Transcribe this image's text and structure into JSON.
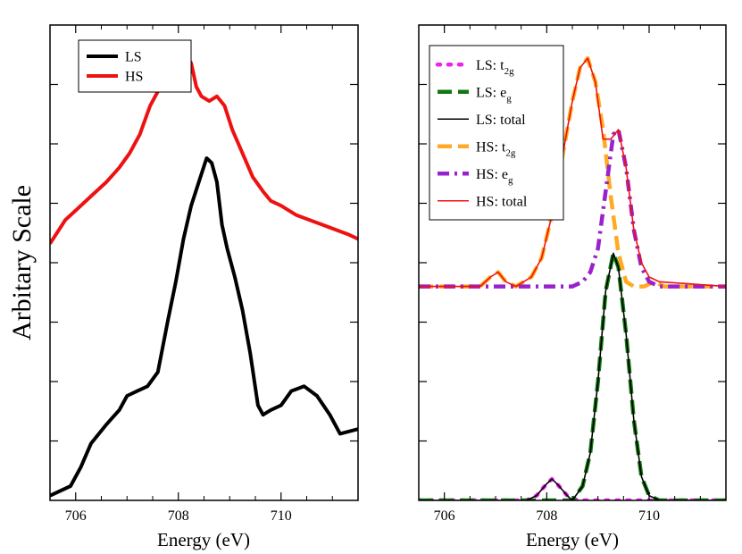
{
  "chart_data": [
    {
      "type": "line",
      "title": "",
      "xlabel": "Energy (eV)",
      "ylabel": "Arbitary Scale",
      "xlim": [
        705.5,
        711.5
      ],
      "ylim": [
        0,
        1
      ],
      "xticks": [
        706,
        708,
        710
      ],
      "xtick_labels": [
        "706",
        "708",
        "710"
      ],
      "grid": false,
      "legend_position": "top-left",
      "series": [
        {
          "name": "LS",
          "color": "#000000",
          "style": "solid",
          "x": [
            705.5,
            705.9,
            706.1,
            706.3,
            706.6,
            706.85,
            707.0,
            707.2,
            707.4,
            707.6,
            707.8,
            707.95,
            708.1,
            708.25,
            708.4,
            708.55,
            708.65,
            708.75,
            708.85,
            708.95,
            709.1,
            709.25,
            709.4,
            709.55,
            709.65,
            709.8,
            710.0,
            710.2,
            710.45,
            710.7,
            710.95,
            711.15,
            711.5
          ],
          "y": [
            0.01,
            0.03,
            0.07,
            0.12,
            0.16,
            0.19,
            0.22,
            0.23,
            0.24,
            0.27,
            0.38,
            0.46,
            0.55,
            0.62,
            0.67,
            0.72,
            0.71,
            0.67,
            0.58,
            0.53,
            0.47,
            0.4,
            0.31,
            0.2,
            0.18,
            0.19,
            0.2,
            0.23,
            0.24,
            0.22,
            0.18,
            0.14,
            0.15
          ]
        },
        {
          "name": "HS",
          "color": "#ee1111",
          "style": "solid",
          "x": [
            705.5,
            705.8,
            706.0,
            706.3,
            706.6,
            706.85,
            707.05,
            707.25,
            707.45,
            707.65,
            707.85,
            708.05,
            708.25,
            708.35,
            708.45,
            708.6,
            708.75,
            708.9,
            709.05,
            709.25,
            709.45,
            709.65,
            709.8,
            710.0,
            710.3,
            710.55,
            710.8,
            711.05,
            711.3,
            711.5
          ],
          "y": [
            0.54,
            0.59,
            0.61,
            0.64,
            0.67,
            0.7,
            0.73,
            0.77,
            0.83,
            0.87,
            0.92,
            0.95,
            0.92,
            0.87,
            0.85,
            0.84,
            0.85,
            0.83,
            0.78,
            0.73,
            0.68,
            0.65,
            0.63,
            0.62,
            0.6,
            0.59,
            0.58,
            0.57,
            0.56,
            0.55
          ]
        }
      ]
    },
    {
      "type": "line",
      "title": "",
      "xlabel": "Energy (eV)",
      "ylabel": "",
      "xlim": [
        705.5,
        711.5
      ],
      "ylim": [
        0,
        1
      ],
      "xticks": [
        706,
        708,
        710
      ],
      "xtick_labels": [
        "706",
        "708",
        "710"
      ],
      "grid": false,
      "legend_position": "top-left",
      "series": [
        {
          "name": "LS: t2g",
          "legend_main": "LS: t",
          "legend_sub": "2g",
          "color": "#ee22ee",
          "style": "dotted",
          "x": [
            705.5,
            707.6,
            707.8,
            708.0,
            708.1,
            708.2,
            708.4,
            708.6,
            711.5
          ],
          "y": [
            0.0,
            0.0,
            0.01,
            0.035,
            0.045,
            0.035,
            0.01,
            0.0,
            0.0
          ]
        },
        {
          "name": "LS: eg",
          "legend_main": "LS: e",
          "legend_sub": "g",
          "color": "#117711",
          "style": "dashed",
          "x": [
            705.5,
            708.5,
            708.7,
            708.85,
            709.0,
            709.15,
            709.3,
            709.4,
            709.55,
            709.7,
            709.85,
            710.0,
            710.2,
            711.5
          ],
          "y": [
            0.0,
            0.0,
            0.03,
            0.1,
            0.25,
            0.44,
            0.52,
            0.49,
            0.35,
            0.17,
            0.05,
            0.01,
            0.0,
            0.0
          ]
        },
        {
          "name": "LS: total",
          "legend_main": "LS: total",
          "legend_sub": "",
          "color": "#000000",
          "style": "solid-thin",
          "x": [
            705.5,
            707.6,
            707.8,
            708.0,
            708.1,
            708.2,
            708.4,
            708.5,
            708.7,
            708.85,
            709.0,
            709.15,
            709.3,
            709.4,
            709.55,
            709.7,
            709.85,
            710.0,
            710.2,
            711.5
          ],
          "y": [
            0.0,
            0.0,
            0.01,
            0.035,
            0.045,
            0.035,
            0.01,
            0.0,
            0.03,
            0.1,
            0.25,
            0.44,
            0.52,
            0.49,
            0.35,
            0.17,
            0.05,
            0.01,
            0.0,
            0.0
          ]
        },
        {
          "name": "HS: t2g",
          "legend_main": "HS: t",
          "legend_sub": "2g",
          "color": "#ffaa22",
          "style": "dashed",
          "x": [
            705.5,
            706.7,
            706.9,
            707.05,
            707.2,
            707.4,
            707.7,
            707.9,
            708.1,
            708.3,
            708.5,
            708.65,
            708.8,
            708.95,
            709.1,
            709.25,
            709.4,
            709.55,
            709.7,
            709.9,
            710.1,
            710.3,
            711.5
          ],
          "y": [
            0.45,
            0.45,
            0.47,
            0.48,
            0.46,
            0.45,
            0.47,
            0.51,
            0.6,
            0.72,
            0.84,
            0.91,
            0.93,
            0.88,
            0.78,
            0.64,
            0.52,
            0.46,
            0.45,
            0.45,
            0.46,
            0.45,
            0.45
          ]
        },
        {
          "name": "HS: eg",
          "legend_main": "HS: e",
          "legend_sub": "g",
          "color": "#9922cc",
          "style": "dashdot",
          "x": [
            705.5,
            708.5,
            708.7,
            708.85,
            709.0,
            709.15,
            709.3,
            709.4,
            709.55,
            709.7,
            709.85,
            710.0,
            710.2,
            711.5
          ],
          "y": [
            0.45,
            0.45,
            0.46,
            0.48,
            0.53,
            0.65,
            0.77,
            0.78,
            0.7,
            0.57,
            0.49,
            0.46,
            0.45,
            0.45
          ]
        },
        {
          "name": "HS: total",
          "legend_main": "HS: total",
          "legend_sub": "",
          "color": "#ee1111",
          "style": "solid-thin",
          "x": [
            705.5,
            706.7,
            706.9,
            707.05,
            707.2,
            707.4,
            707.7,
            707.9,
            708.1,
            708.3,
            708.5,
            708.65,
            708.8,
            708.95,
            709.1,
            709.25,
            709.4,
            709.55,
            709.7,
            709.85,
            710.0,
            710.2,
            711.5
          ],
          "y": [
            0.45,
            0.45,
            0.47,
            0.48,
            0.46,
            0.45,
            0.47,
            0.51,
            0.6,
            0.72,
            0.84,
            0.91,
            0.93,
            0.88,
            0.76,
            0.76,
            0.78,
            0.7,
            0.57,
            0.5,
            0.47,
            0.46,
            0.45
          ]
        }
      ]
    }
  ]
}
